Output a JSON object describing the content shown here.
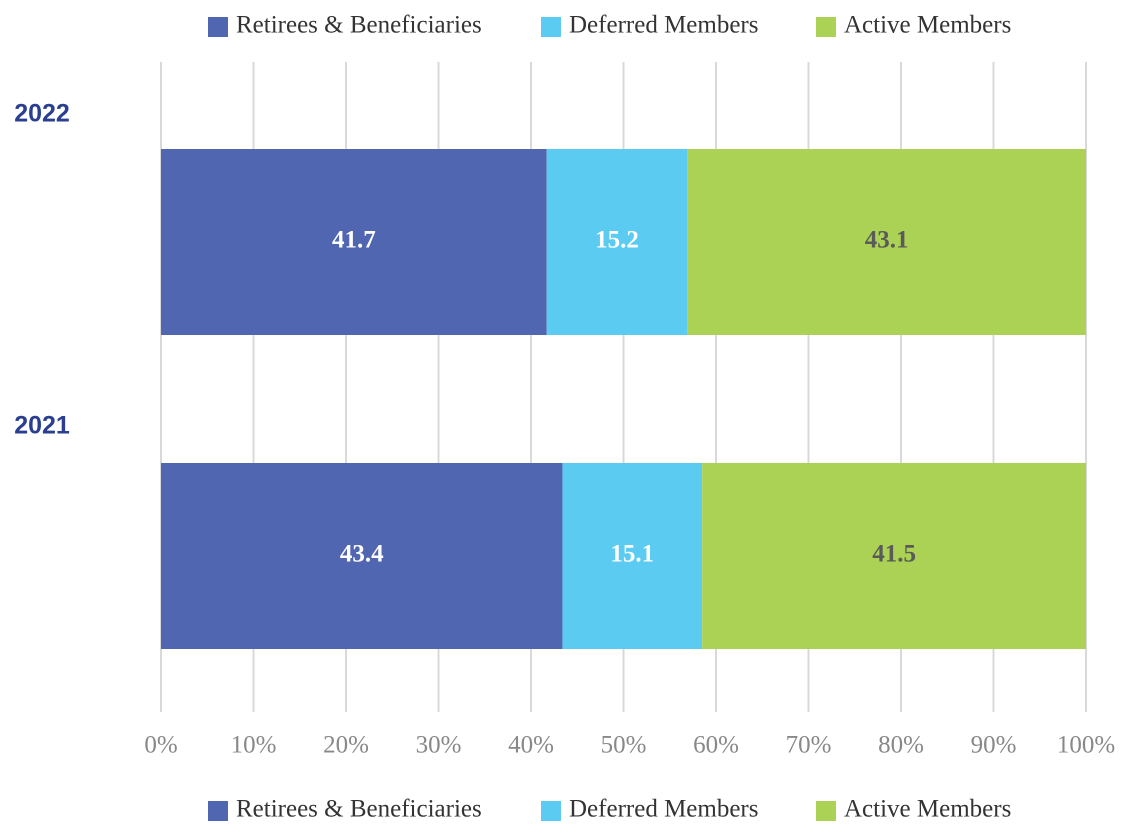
{
  "chart_data": {
    "type": "stacked_barh",
    "categories": [
      "2022",
      "2021"
    ],
    "series": [
      {
        "name": "Retirees & Beneficiaries",
        "color": "#5166b0",
        "label_color": "#ffffff",
        "values": [
          41.7,
          43.4
        ]
      },
      {
        "name": "Deferred Members",
        "color": "#5bcbf2",
        "label_color": "#ffffff",
        "values": [
          15.2,
          15.1
        ]
      },
      {
        "name": "Active Members",
        "color": "#abd155",
        "label_color": "#5a5a5a",
        "values": [
          43.1,
          41.5
        ]
      }
    ],
    "xlim": [
      0,
      100
    ],
    "xticks": [
      {
        "value": 0,
        "label": "0%"
      },
      {
        "value": 10,
        "label": "10%"
      },
      {
        "value": 20,
        "label": "20%"
      },
      {
        "value": 30,
        "label": "30%"
      },
      {
        "value": 40,
        "label": "40%"
      },
      {
        "value": 50,
        "label": "50%"
      },
      {
        "value": 60,
        "label": "60%"
      },
      {
        "value": 70,
        "label": "70%"
      },
      {
        "value": 80,
        "label": "80%"
      },
      {
        "value": 90,
        "label": "90%"
      },
      {
        "value": 100,
        "label": "100%"
      }
    ],
    "grid": true
  }
}
